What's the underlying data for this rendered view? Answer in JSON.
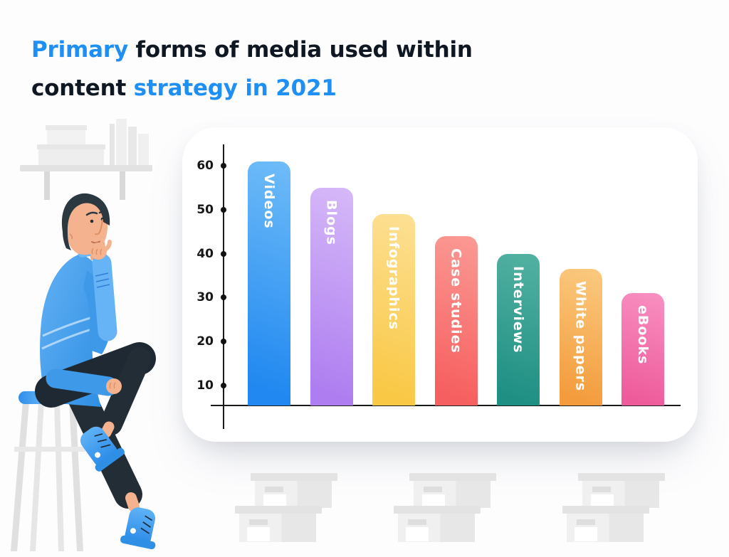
{
  "title": {
    "line1_accent": "Primary",
    "line1_rest": " forms of media used within",
    "line2_rest": "content ",
    "line2_accent": "strategy in 2021",
    "accent_color": "#1E90F5",
    "text_color": "#0F1822"
  },
  "chart_data": {
    "type": "bar",
    "title": "Primary forms of media used within content strategy in 2021",
    "categories": [
      "Videos",
      "Blogs",
      "Infographics",
      "Case studies",
      "Interviews",
      "White papers",
      "eBooks"
    ],
    "values": [
      61,
      55,
      49,
      44,
      40,
      36.5,
      31
    ],
    "bar_colors": [
      {
        "light": "#6FBCF8",
        "dark": "#2088F0"
      },
      {
        "light": "#D6B9F8",
        "dark": "#AE7EF0"
      },
      {
        "light": "#FDE095",
        "dark": "#F9C845"
      },
      {
        "light": "#FB9A94",
        "dark": "#F65F5F"
      },
      {
        "light": "#53B2A2",
        "dark": "#1F8F84"
      },
      {
        "light": "#FBCA80",
        "dark": "#F39C3D"
      },
      {
        "light": "#F890C1",
        "dark": "#EE5B9B"
      }
    ],
    "label_color": "#FFFFFF",
    "bar_label_placement": "inside-top-vertical",
    "yticks": [
      10,
      20,
      30,
      40,
      50,
      60
    ],
    "ylim": [
      0,
      65
    ],
    "xlabel": "",
    "ylabel": "",
    "grid": false,
    "legend_position": "none",
    "axis_color": "#1A1A1A"
  },
  "illustration": {
    "left": "man-thinking-on-stool",
    "shelf": "wall-shelf-with-boxes-and-books",
    "bottom": "three-groups-of-stacked-storage-boxes",
    "colors": {
      "sweater": "#3F9BEA",
      "skin": "#F5B28E",
      "hair": "#2B3840",
      "pants": "#202B35",
      "stool_seat": "#3E9BEE",
      "gray_light": "#EFEFEF",
      "gray_mid": "#E3E3E3"
    }
  }
}
